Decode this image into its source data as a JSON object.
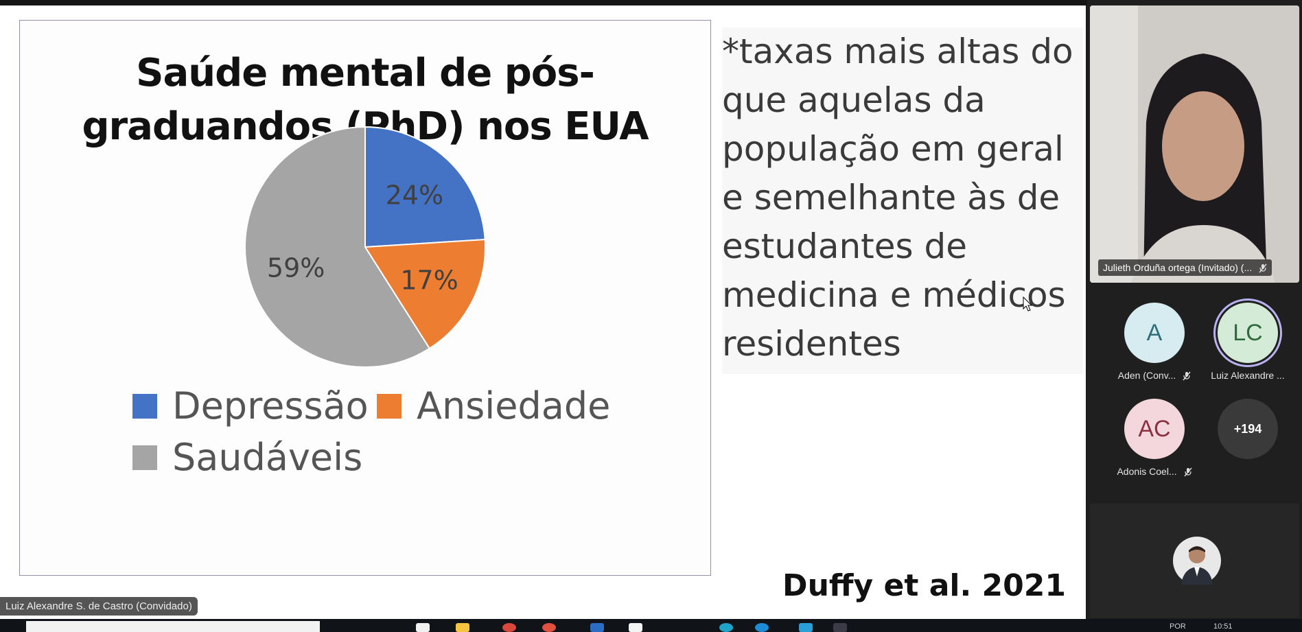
{
  "slide": {
    "title": "Saúde mental de pós-graduandos (PhD) nos EUA",
    "side_text": "*taxas mais altas do que aquelas da população em geral e semelhante às de estudantes de medicina e médicos residentes",
    "citation": "Duffy et al. 2021",
    "presenter_label": "Luiz Alexandre S. de Castro (Convidado)"
  },
  "chart_data": {
    "type": "pie",
    "title": "Saúde mental de pós-graduandos (PhD) nos EUA",
    "categories": [
      "Depressão",
      "Ansiedade",
      "Saudáveis"
    ],
    "values": [
      24,
      17,
      59
    ],
    "labels": [
      "24%",
      "17%",
      "59%"
    ],
    "colors": [
      "#4472c4",
      "#ed7d31",
      "#a5a5a5"
    ],
    "legend_position": "bottom"
  },
  "participants": {
    "main_video_name": "Julieth Orduña ortega (Invitado) (...",
    "tiles": [
      {
        "initials": "A",
        "label": "Aden (Conv...",
        "bg": "#d6ecf0",
        "fg": "#2e6f7a",
        "muted": true
      },
      {
        "initials": "LC",
        "label": "Luiz Alexandre ...",
        "bg": "#d4ecd7",
        "fg": "#2d6b3b",
        "muted": false
      },
      {
        "initials": "AC",
        "label": "Adonis Coel...",
        "bg": "#f4d7dc",
        "fg": "#8b3142",
        "muted": true
      },
      {
        "initials": "+194",
        "label": "",
        "bg": "#3a3a3a",
        "fg": "#ffffff",
        "muted": false
      }
    ]
  },
  "taskbar": {
    "lang": "POR",
    "time": "10:51"
  }
}
